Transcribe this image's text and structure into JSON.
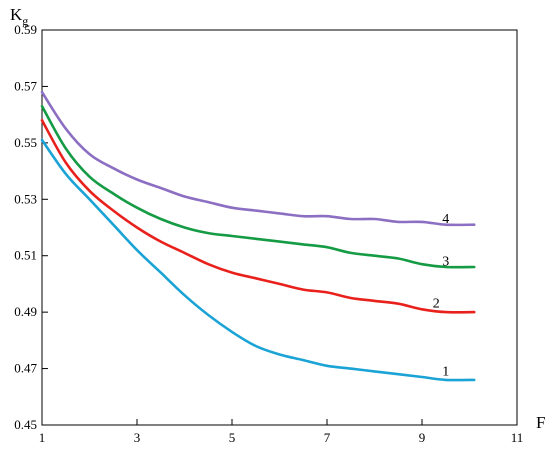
{
  "chart_data": {
    "type": "line",
    "title": "",
    "xlabel": "F",
    "ylabel_main": "K",
    "ylabel_sub": "g",
    "xlim": [
      1,
      11
    ],
    "ylim": [
      0.45,
      0.59
    ],
    "x_ticks": [
      1,
      3,
      5,
      7,
      9,
      11
    ],
    "x_tick_labels": [
      "1",
      "3",
      "5",
      "7",
      "9",
      "11"
    ],
    "y_ticks": [
      0.45,
      0.47,
      0.49,
      0.51,
      0.53,
      0.55,
      0.57,
      0.59
    ],
    "y_tick_labels": [
      "0.45",
      "0.47",
      "0.49",
      "0.51",
      "0.53",
      "0.55",
      "0.57",
      "0.59"
    ],
    "grid": false,
    "series": [
      {
        "name": "1",
        "color": "#1ba3d6",
        "label_at": [
          9.5,
          0.469
        ],
        "x": [
          1,
          1.5,
          2,
          2.5,
          3,
          3.5,
          4,
          4.5,
          5,
          5.5,
          6,
          6.5,
          7,
          7.5,
          8,
          8.5,
          9,
          9.5,
          10.1
        ],
        "y": [
          0.551,
          0.539,
          0.53,
          0.521,
          0.512,
          0.504,
          0.496,
          0.489,
          0.483,
          0.478,
          0.475,
          0.473,
          0.471,
          0.47,
          0.469,
          0.468,
          0.467,
          0.466,
          0.466
        ]
      },
      {
        "name": "2",
        "color": "#e8211c",
        "label_at": [
          9.3,
          0.493
        ],
        "x": [
          1,
          1.5,
          2,
          2.5,
          3,
          3.5,
          4,
          4.5,
          5,
          5.5,
          6,
          6.5,
          7,
          7.5,
          8,
          8.5,
          9,
          9.5,
          10.1
        ],
        "y": [
          0.558,
          0.543,
          0.533,
          0.526,
          0.52,
          0.515,
          0.511,
          0.507,
          0.504,
          0.502,
          0.5,
          0.498,
          0.497,
          0.495,
          0.494,
          0.493,
          0.491,
          0.49,
          0.49
        ]
      },
      {
        "name": "3",
        "color": "#169b45",
        "label_at": [
          9.5,
          0.508
        ],
        "x": [
          1,
          1.5,
          2,
          2.5,
          3,
          3.5,
          4,
          4.5,
          5,
          5.5,
          6,
          6.5,
          7,
          7.5,
          8,
          8.5,
          9,
          9.5,
          10.1
        ],
        "y": [
          0.563,
          0.548,
          0.538,
          0.532,
          0.527,
          0.523,
          0.52,
          0.518,
          0.517,
          0.516,
          0.515,
          0.514,
          0.513,
          0.511,
          0.51,
          0.509,
          0.507,
          0.506,
          0.506
        ]
      },
      {
        "name": "4",
        "color": "#8c6fc2",
        "label_at": [
          9.5,
          0.523
        ],
        "x": [
          1,
          1.5,
          2,
          2.5,
          3,
          3.5,
          4,
          4.5,
          5,
          5.5,
          6,
          6.5,
          7,
          7.5,
          8,
          8.5,
          9,
          9.5,
          10.1
        ],
        "y": [
          0.568,
          0.555,
          0.546,
          0.541,
          0.537,
          0.534,
          0.531,
          0.529,
          0.527,
          0.526,
          0.525,
          0.524,
          0.524,
          0.523,
          0.523,
          0.522,
          0.522,
          0.521,
          0.521
        ]
      }
    ]
  }
}
